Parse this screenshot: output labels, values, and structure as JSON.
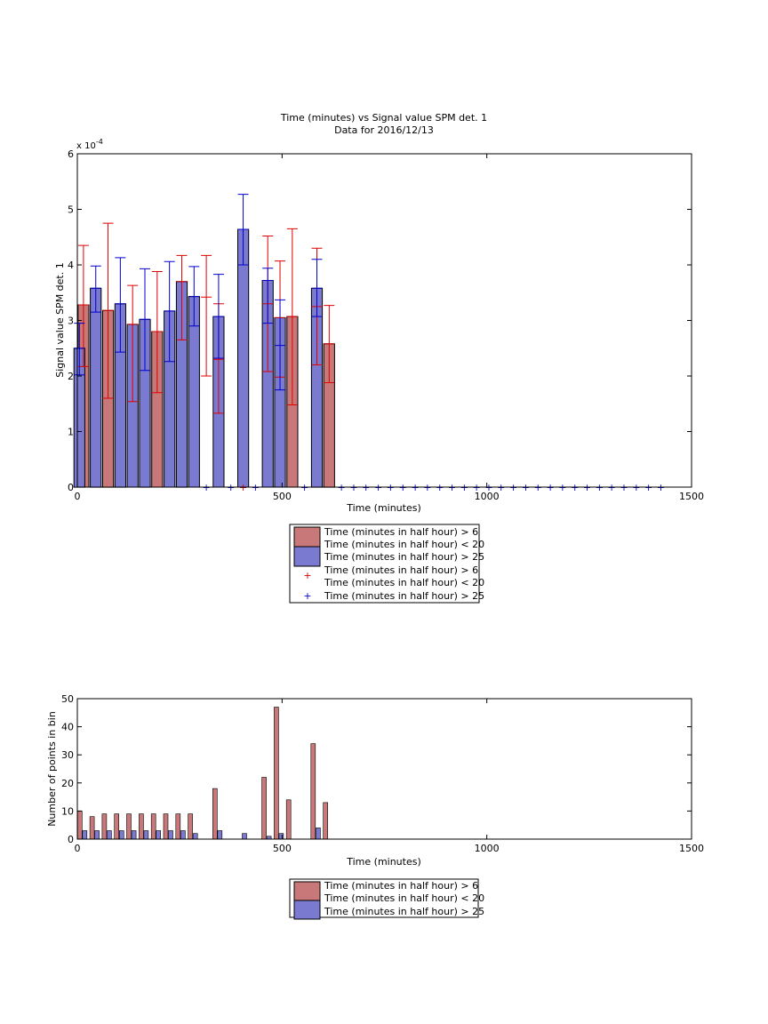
{
  "chart_data": [
    {
      "type": "bar",
      "title": "Time (minutes) vs Signal value SPM det. 1",
      "subtitle": "Data for 2016/12/13",
      "xlabel": "Time (minutes)",
      "ylabel": "Signal value SPM det. 1",
      "xlim": [
        0,
        1500
      ],
      "ylim": [
        0,
        0.0006
      ],
      "xticks": [
        "0",
        "500",
        "1000",
        "1500"
      ],
      "yticks": [
        "0",
        "1",
        "2",
        "3",
        "4",
        "5",
        "6"
      ],
      "exponent_label": "x 10",
      "exponent_value": "-4",
      "grid": false,
      "legend_position": "below",
      "colors": {
        "series_red": "#c87878",
        "series_blue": "#7a7ad0",
        "err_red": "#dd0000",
        "err_blue": "#0000cc",
        "edge": "#000000"
      },
      "legend": [
        "Time (minutes in half hour) > 6\nTime (minutes in half hour) < 20",
        "Time (minutes in half hour) > 25",
        "Time (minutes in half hour) > 6\nTime (minutes in half hour) < 20",
        "Time (minutes in half hour) > 25"
      ],
      "series": [
        {
          "x": [
            15,
            75,
            135,
            195,
            255,
            315,
            345,
            405,
            465,
            495,
            525,
            585,
            615
          ],
          "values": [
            0.000328,
            0.000318,
            0.000293,
            0.00028,
            0.00037,
            0.000342,
            0.00023,
            0,
            0.00033,
            0.000305,
            0.000307,
            0.000325,
            0.000258
          ],
          "err_low": [
            0.000217,
            0.00016,
            0.000154,
            0.00017,
            0.000265,
            0.0002,
            0.000133,
            0,
            0.000208,
            0.000198,
            0.000148,
            0.00022,
            0.000188
          ],
          "err_high": [
            0.000435,
            0.000475,
            0.000363,
            0.000388,
            0.000417,
            0.000417,
            0.00033,
            0,
            0.000452,
            0.000407,
            0.000465,
            0.00043,
            0.000327
          ]
        },
        {
          "x": [
            5,
            45,
            105,
            165,
            225,
            285,
            345,
            405,
            465,
            495,
            585
          ],
          "values": [
            0.00025,
            0.000358,
            0.00033,
            0.000302,
            0.000317,
            0.000343,
            0.000307,
            0.000464,
            0.000372,
            0.000255,
            0.000358
          ],
          "err_low": [
            0.000202,
            0.000315,
            0.000243,
            0.00021,
            0.000226,
            0.00029,
            0.000232,
            0.0004,
            0.000295,
            0.000175,
            0.000307
          ],
          "err_high": [
            0.000295,
            0.000398,
            0.000413,
            0.000393,
            0.000406,
            0.000397,
            0.000383,
            0.000527,
            0.000394,
            0.000337,
            0.00041
          ]
        }
      ],
      "extra_bars": [
        {
          "x": 15,
          "value": 0.000328,
          "color": "#c87878"
        },
        {
          "x": 75,
          "value": 0.000318,
          "color": "#c87878"
        },
        {
          "x": 195,
          "value": 0.00028,
          "color": "#c87878"
        },
        {
          "x": 525,
          "value": 0.000307,
          "color": "#c87878"
        },
        {
          "x": 615,
          "value": 0.000258,
          "color": "#c87878"
        },
        {
          "x": 5,
          "value": 0.00025,
          "color": "#7a7ad0"
        },
        {
          "x": 45,
          "value": 0.000358,
          "color": "#7a7ad0"
        },
        {
          "x": 105,
          "value": 0.00033,
          "color": "#7a7ad0"
        },
        {
          "x": 135,
          "value": 0.000293,
          "color": "#7a7ad0"
        },
        {
          "x": 165,
          "value": 0.000302,
          "color": "#7a7ad0"
        },
        {
          "x": 225,
          "value": 0.000317,
          "color": "#7a7ad0"
        },
        {
          "x": 255,
          "value": 0.00037,
          "color": "#7a7ad0"
        },
        {
          "x": 285,
          "value": 0.000343,
          "color": "#7a7ad0"
        },
        {
          "x": 345,
          "value": 0.000307,
          "color": "#7a7ad0"
        },
        {
          "x": 405,
          "value": 0.000464,
          "color": "#7a7ad0"
        },
        {
          "x": 465,
          "value": 0.000372,
          "color": "#7a7ad0"
        },
        {
          "x": 495,
          "value": 0.000305,
          "color": "#7a7ad0"
        },
        {
          "x": 585,
          "value": 0.000358,
          "color": "#7a7ad0"
        }
      ],
      "markers_red_x": [
        405
      ],
      "markers_blue_x": [
        315,
        375,
        435,
        555,
        645,
        675,
        705,
        735,
        765,
        795,
        825,
        855,
        885,
        915,
        945,
        975,
        1005,
        1035,
        1065,
        1095,
        1125,
        1155,
        1185,
        1215,
        1245,
        1275,
        1305,
        1335,
        1365,
        1395,
        1425
      ]
    },
    {
      "type": "bar",
      "title": "",
      "xlabel": "Time (minutes)",
      "ylabel": "Number of points in bin",
      "xlim": [
        0,
        1500
      ],
      "ylim": [
        0,
        50
      ],
      "xticks": [
        "0",
        "500",
        "1000",
        "1500"
      ],
      "yticks": [
        "0",
        "10",
        "20",
        "30",
        "40",
        "50"
      ],
      "grid": false,
      "legend_position": "below",
      "colors": {
        "series_red": "#c87878",
        "series_blue": "#7a7ad0"
      },
      "legend": [
        "Time (minutes in half hour) > 6\nTime (minutes in half hour) < 20",
        "Time (minutes in half hour) > 25"
      ],
      "series": [
        {
          "x": [
            6,
            36,
            66,
            96,
            126,
            156,
            186,
            216,
            246,
            276,
            336,
            456,
            486,
            516,
            576,
            606
          ],
          "values": [
            10,
            8,
            9,
            9,
            9,
            9,
            9,
            9,
            9,
            9,
            18,
            22,
            47,
            14,
            34,
            13
          ]
        },
        {
          "x": [
            18,
            48,
            78,
            108,
            138,
            168,
            198,
            228,
            258,
            288,
            348,
            408,
            468,
            498,
            588
          ],
          "values": [
            3,
            3,
            3,
            3,
            3,
            3,
            3,
            3,
            3,
            2,
            3,
            2,
            1,
            2,
            4
          ]
        }
      ]
    }
  ]
}
